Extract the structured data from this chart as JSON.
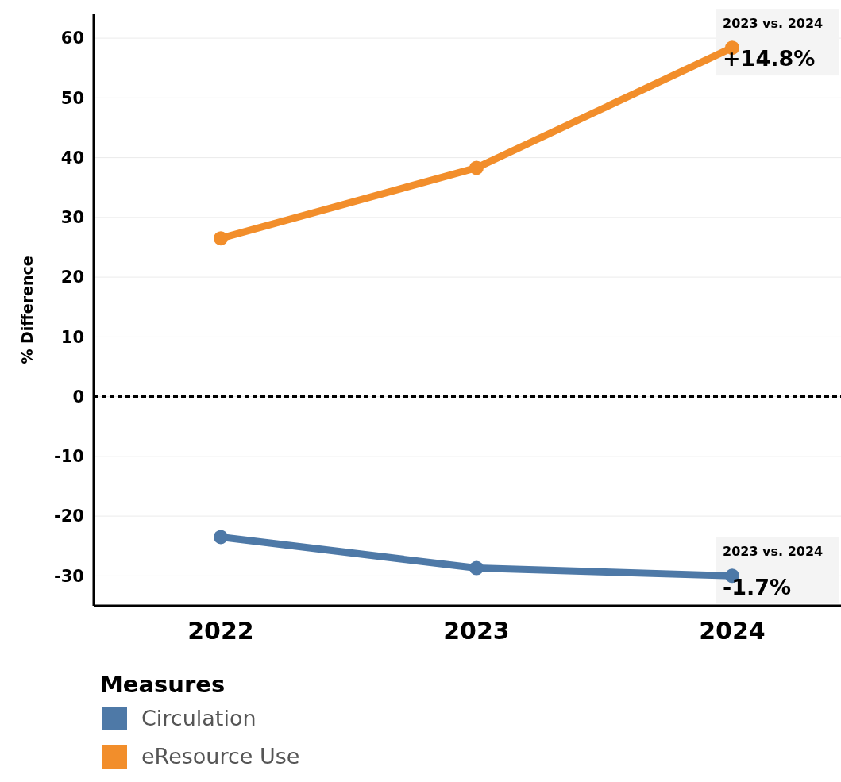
{
  "chart_data": {
    "type": "line",
    "ylabel": "% Difference",
    "legend_title": "Measures",
    "categories": [
      "2022",
      "2023",
      "2024"
    ],
    "series": [
      {
        "name": "Circulation",
        "color": "#4e79a7",
        "values": [
          -23.5,
          -28.7,
          -30.0
        ]
      },
      {
        "name": "eResource Use",
        "color": "#f28e2b",
        "values": [
          26.5,
          38.3,
          58.4
        ]
      }
    ],
    "ylim": [
      -35,
      64
    ],
    "yticks": [
      -30,
      -20,
      -10,
      0,
      10,
      20,
      30,
      40,
      50,
      60
    ],
    "grid": "y",
    "marker": "circle",
    "legend": "bottom left",
    "ref_lines": [
      {
        "axis": "y",
        "value": 0,
        "line_style": "dashed",
        "color": "#000000"
      }
    ],
    "annotations": [
      {
        "text": "2023 vs. 2024",
        "x": "2024",
        "y": 58.4
      },
      {
        "text": "+14.8%",
        "x": "2024",
        "y": 58.4
      },
      {
        "text": "2023 vs. 2024",
        "x": "2024",
        "y": -30.0
      },
      {
        "text": "-1.7%",
        "x": "2024",
        "y": -30.0
      }
    ]
  }
}
